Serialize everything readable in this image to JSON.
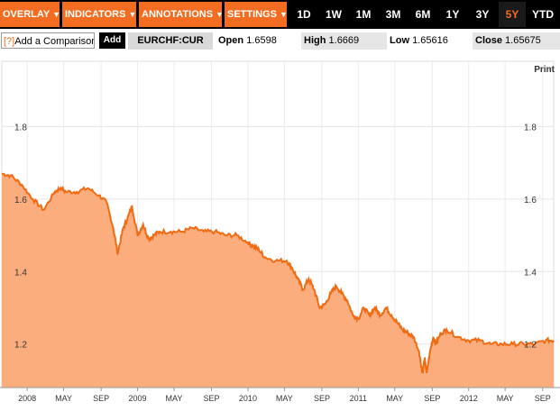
{
  "toolbar": {
    "menus": [
      {
        "label": "OVERLAY"
      },
      {
        "label": "INDICATORS"
      },
      {
        "label": "ANNOTATIONS"
      },
      {
        "label": "SETTINGS"
      }
    ],
    "ranges": [
      "1D",
      "1W",
      "1M",
      "3M",
      "6M",
      "1Y",
      "3Y",
      "5Y",
      "YTD"
    ],
    "active_range": "5Y"
  },
  "comparison": {
    "help": "[?]",
    "label": "Add a Comparison",
    "add_label": "Add"
  },
  "ticker": "EURCHF:CUR",
  "quote": {
    "open_label": "Open",
    "open_value": "1.6598",
    "high_label": "High",
    "high_value": "1.6669",
    "low_label": "Low",
    "low_value": "1.65616",
    "close_label": "Close",
    "close_value": "1.65675"
  },
  "print_label": "Print",
  "colors": {
    "accent": "#f26d21",
    "area_fill": "#fbad7e",
    "line": "#f06b12"
  },
  "chart_data": {
    "type": "area",
    "title": "",
    "xlabel": "",
    "ylabel": "",
    "ylim": [
      1.08,
      1.98
    ],
    "yticks": [
      "1.8",
      "1.6",
      "1.4",
      "1.2"
    ],
    "ytick_values": [
      1.8,
      1.6,
      1.4,
      1.2
    ],
    "xticks": [
      "2008",
      "MAY",
      "SEP",
      "2009",
      "MAY",
      "SEP",
      "2010",
      "MAY",
      "SEP",
      "2011",
      "MAY",
      "SEP",
      "2012",
      "MAY",
      "SEP"
    ],
    "xtick_values": [
      2008.0,
      2008.33,
      2008.67,
      2009.0,
      2009.33,
      2009.67,
      2010.0,
      2010.33,
      2010.67,
      2011.0,
      2011.33,
      2011.67,
      2012.0,
      2012.33,
      2012.67
    ],
    "xlim": [
      2007.77,
      2012.77
    ],
    "series": [
      {
        "x": [
          2007.77,
          2007.85,
          2007.95,
          2008.05,
          2008.15,
          2008.25,
          2008.3,
          2008.35,
          2008.45,
          2008.55,
          2008.65,
          2008.72,
          2008.78,
          2008.82,
          2008.87,
          2008.9,
          2008.95,
          2009.0,
          2009.05,
          2009.1,
          2009.15,
          2009.2,
          2009.3,
          2009.4,
          2009.5,
          2009.6,
          2009.7,
          2009.8,
          2009.9,
          2010.0,
          2010.05,
          2010.1,
          2010.15,
          2010.25,
          2010.35,
          2010.4,
          2010.45,
          2010.5,
          2010.55,
          2010.6,
          2010.65,
          2010.7,
          2010.75,
          2010.8,
          2010.85,
          2010.9,
          2010.95,
          2011.0,
          2011.05,
          2011.1,
          2011.15,
          2011.2,
          2011.25,
          2011.3,
          2011.35,
          2011.4,
          2011.45,
          2011.5,
          2011.55,
          2011.58,
          2011.6,
          2011.62,
          2011.65,
          2011.68,
          2011.7,
          2011.75,
          2011.8,
          2011.9,
          2012.0,
          2012.1,
          2012.2,
          2012.3,
          2012.4,
          2012.5,
          2012.6,
          2012.7,
          2012.77
        ],
        "y": [
          1.67,
          1.665,
          1.64,
          1.6,
          1.57,
          1.62,
          1.63,
          1.62,
          1.62,
          1.63,
          1.61,
          1.59,
          1.52,
          1.45,
          1.52,
          1.54,
          1.58,
          1.5,
          1.53,
          1.49,
          1.5,
          1.51,
          1.51,
          1.51,
          1.52,
          1.51,
          1.51,
          1.5,
          1.5,
          1.48,
          1.47,
          1.46,
          1.44,
          1.43,
          1.43,
          1.41,
          1.38,
          1.35,
          1.38,
          1.35,
          1.3,
          1.31,
          1.34,
          1.36,
          1.34,
          1.32,
          1.28,
          1.27,
          1.3,
          1.28,
          1.3,
          1.28,
          1.3,
          1.28,
          1.26,
          1.24,
          1.23,
          1.22,
          1.18,
          1.12,
          1.16,
          1.12,
          1.18,
          1.22,
          1.2,
          1.23,
          1.24,
          1.22,
          1.21,
          1.21,
          1.2,
          1.2,
          1.2,
          1.2,
          1.2,
          1.21,
          1.21
        ]
      }
    ]
  }
}
